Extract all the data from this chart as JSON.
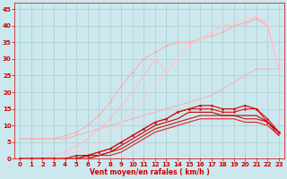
{
  "background_color": "#cce8ef",
  "grid_color": "#aacccc",
  "xlabel": "Vent moyen/en rafales ( km/h )",
  "xlabel_color": "#cc0000",
  "xlabel_fontsize": 5.5,
  "xtick_color": "#cc0000",
  "ytick_color": "#cc0000",
  "tick_fontsize": 5,
  "xlim": [
    -0.5,
    23.5
  ],
  "ylim": [
    0,
    47
  ],
  "yticks": [
    0,
    5,
    10,
    15,
    20,
    25,
    30,
    35,
    40,
    45
  ],
  "xticks": [
    0,
    1,
    2,
    3,
    4,
    5,
    6,
    7,
    8,
    9,
    10,
    11,
    12,
    13,
    14,
    15,
    16,
    17,
    18,
    19,
    20,
    21,
    22,
    23
  ],
  "lines": [
    {
      "x": [
        0,
        1,
        2,
        3,
        4,
        5,
        6,
        7,
        8,
        9,
        10,
        11,
        12,
        13,
        14,
        15,
        16,
        17,
        18,
        19,
        20,
        21,
        22,
        23
      ],
      "y": [
        6,
        6,
        6,
        6,
        6,
        7,
        8,
        9,
        10,
        11,
        12,
        13,
        14,
        15,
        16,
        17,
        18,
        19,
        21,
        23,
        25,
        27,
        27,
        27
      ],
      "color": "#ffaaaa",
      "lw": 0.7,
      "marker": null,
      "ms": 0
    },
    {
      "x": [
        0,
        1,
        2,
        3,
        4,
        5,
        6,
        7,
        8,
        9,
        10,
        11,
        12,
        13,
        14,
        15,
        16,
        17,
        18,
        19,
        20,
        21,
        22,
        23
      ],
      "y": [
        6,
        6,
        6,
        6,
        7,
        8,
        10,
        13,
        17,
        22,
        26,
        30,
        32,
        34,
        35,
        35,
        36,
        37,
        38,
        40,
        41,
        42,
        40,
        27
      ],
      "color": "#ffaaaa",
      "lw": 0.7,
      "marker": "o",
      "ms": 1.5
    },
    {
      "x": [
        0,
        1,
        2,
        3,
        4,
        5,
        6,
        7,
        8,
        9,
        10,
        11,
        12,
        13,
        14,
        15,
        16,
        17,
        18,
        19,
        20,
        21,
        22,
        23
      ],
      "y": [
        0,
        0,
        0,
        1,
        2,
        4,
        6,
        9,
        12,
        16,
        20,
        25,
        30,
        26,
        30,
        34,
        36,
        38,
        40,
        40,
        40,
        43,
        40,
        27
      ],
      "color": "#ffbbbb",
      "lw": 0.7,
      "marker": "o",
      "ms": 1.5
    },
    {
      "x": [
        0,
        1,
        2,
        3,
        4,
        5,
        6,
        7,
        8,
        9,
        10,
        11,
        12,
        13,
        14,
        15,
        16,
        17,
        18,
        19,
        20,
        21,
        22,
        23
      ],
      "y": [
        0,
        0,
        0,
        0,
        1,
        2,
        3,
        5,
        8,
        11,
        14,
        18,
        22,
        26,
        30,
        34,
        36,
        38,
        40,
        41,
        42,
        43,
        41,
        27
      ],
      "color": "#ffcccc",
      "lw": 0.7,
      "marker": null,
      "ms": 0
    },
    {
      "x": [
        0,
        1,
        2,
        3,
        4,
        5,
        6,
        7,
        8,
        9,
        10,
        11,
        12,
        13,
        14,
        15,
        16,
        17,
        18,
        19,
        20,
        21,
        22,
        23
      ],
      "y": [
        0,
        0,
        0,
        0,
        0,
        1,
        1,
        2,
        3,
        5,
        7,
        9,
        11,
        12,
        14,
        15,
        16,
        16,
        15,
        15,
        16,
        15,
        11,
        8
      ],
      "color": "#cc0000",
      "lw": 0.8,
      "marker": "o",
      "ms": 1.5
    },
    {
      "x": [
        0,
        1,
        2,
        3,
        4,
        5,
        6,
        7,
        8,
        9,
        10,
        11,
        12,
        13,
        14,
        15,
        16,
        17,
        18,
        19,
        20,
        21,
        22,
        23
      ],
      "y": [
        0,
        0,
        0,
        0,
        0,
        0,
        1,
        2,
        3,
        5,
        7,
        9,
        11,
        12,
        14,
        15,
        15,
        15,
        14,
        14,
        15,
        15,
        12,
        8
      ],
      "color": "#dd1111",
      "lw": 0.8,
      "marker": "o",
      "ms": 1.5
    },
    {
      "x": [
        0,
        1,
        2,
        3,
        4,
        5,
        6,
        7,
        8,
        9,
        10,
        11,
        12,
        13,
        14,
        15,
        16,
        17,
        18,
        19,
        20,
        21,
        22,
        23
      ],
      "y": [
        0,
        0,
        0,
        0,
        0,
        0,
        1,
        1,
        2,
        4,
        6,
        8,
        10,
        11,
        12,
        14,
        14,
        14,
        13,
        13,
        13,
        13,
        11,
        8
      ],
      "color": "#bb0000",
      "lw": 0.8,
      "marker": null,
      "ms": 0
    },
    {
      "x": [
        0,
        1,
        2,
        3,
        4,
        5,
        6,
        7,
        8,
        9,
        10,
        11,
        12,
        13,
        14,
        15,
        16,
        17,
        18,
        19,
        20,
        21,
        22,
        23
      ],
      "y": [
        0,
        0,
        0,
        0,
        0,
        0,
        0,
        1,
        2,
        3,
        5,
        7,
        9,
        10,
        11,
        12,
        13,
        13,
        13,
        13,
        12,
        12,
        11,
        7
      ],
      "color": "#cc1111",
      "lw": 0.8,
      "marker": null,
      "ms": 0
    },
    {
      "x": [
        0,
        1,
        2,
        3,
        4,
        5,
        6,
        7,
        8,
        9,
        10,
        11,
        12,
        13,
        14,
        15,
        16,
        17,
        18,
        19,
        20,
        21,
        22,
        23
      ],
      "y": [
        0,
        0,
        0,
        0,
        0,
        0,
        0,
        1,
        1,
        2,
        4,
        6,
        8,
        9,
        10,
        11,
        12,
        12,
        12,
        12,
        11,
        11,
        10,
        7
      ],
      "color": "#dd2222",
      "lw": 0.8,
      "marker": null,
      "ms": 0
    }
  ]
}
